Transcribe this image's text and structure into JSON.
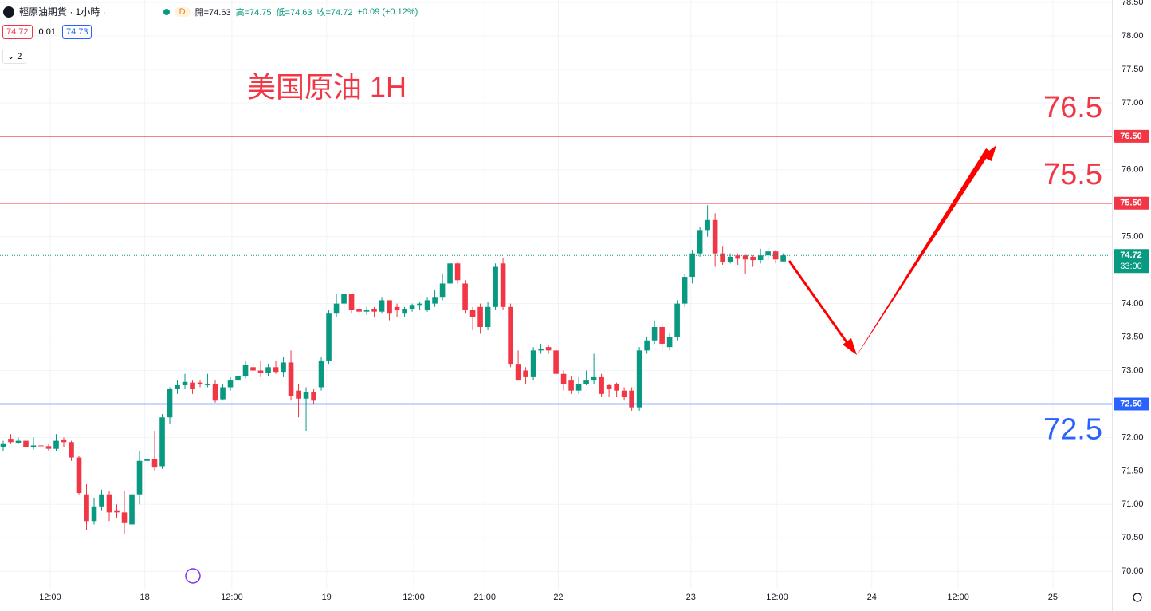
{
  "header": {
    "symbol": "輕原油期貨 · 1小時 ·",
    "badge": "D",
    "ohlc": [
      "開=74.63",
      "高=74.75",
      "低=74.63",
      "收=74.72",
      "+0.09 (+0.12%)"
    ],
    "bid": "74.72",
    "spread": "0.01",
    "ask": "74.73",
    "indicators": "2"
  },
  "chart_data": {
    "type": "candlestick",
    "title": "美国原油 1H",
    "up_color": "#089981",
    "down_color": "#f23645",
    "grid": true,
    "xlim": [
      -0.42,
      146.4
    ],
    "xticks": [
      {
        "value": 6.2,
        "label": "12:00"
      },
      {
        "value": 18.7,
        "label": "18"
      },
      {
        "value": 30.2,
        "label": "12:00"
      },
      {
        "value": 42.7,
        "label": "19"
      },
      {
        "value": 54.2,
        "label": "12:00"
      },
      {
        "value": 63.6,
        "label": "21:00"
      },
      {
        "value": 73.3,
        "label": "22"
      },
      {
        "value": 90.8,
        "label": "23"
      },
      {
        "value": 102.2,
        "label": "12:00"
      },
      {
        "value": 114.7,
        "label": "24"
      },
      {
        "value": 126.1,
        "label": "12:00"
      },
      {
        "value": 138.6,
        "label": "25"
      }
    ],
    "ylim": [
      69.74,
      78.537
    ],
    "yticks": [
      {
        "value": 70,
        "label": "70.00"
      },
      {
        "value": 70.5,
        "label": "70.50"
      },
      {
        "value": 71,
        "label": "71.00"
      },
      {
        "value": 71.5,
        "label": "71.50"
      },
      {
        "value": 72,
        "label": "72.00"
      },
      {
        "value": 72.5,
        "label": "72.50"
      },
      {
        "value": 73,
        "label": "73.00"
      },
      {
        "value": 73.5,
        "label": "73.50"
      },
      {
        "value": 74,
        "label": "74.00"
      },
      {
        "value": 74.5,
        "label": "74.50"
      },
      {
        "value": 75,
        "label": "75.00"
      },
      {
        "value": 75.5,
        "label": "75.50"
      },
      {
        "value": 76,
        "label": "76.00"
      },
      {
        "value": 76.5,
        "label": "76.50"
      },
      {
        "value": 77,
        "label": "77.00"
      },
      {
        "value": 77.5,
        "label": "77.50"
      },
      {
        "value": 78,
        "label": "78.00"
      },
      {
        "value": 78.5,
        "label": "78.50"
      }
    ],
    "open": [
      71.85,
      71.98,
      71.92,
      71.95,
      71.85,
      71.88,
      71.87,
      71.83,
      71.97,
      71.93,
      71.7,
      71.15,
      70.75,
      70.97,
      71.15,
      70.9,
      70.88,
      70.7,
      71.15,
      71.65,
      71.68,
      71.57,
      72.3,
      72.72,
      72.78,
      72.82,
      72.82,
      72.78,
      72.8,
      72.57,
      72.75,
      72.85,
      72.92,
      73.05,
      73,
      72.97,
      73.05,
      72.98,
      73.12,
      72.7,
      72.58,
      72.68,
      72.75,
      73.15,
      73.85,
      74,
      74.15,
      73.92,
      73.88,
      73.92,
      73.88,
      74.05,
      73.95,
      73.85,
      73.92,
      73.98,
      73.9,
      74,
      74.1,
      74.3,
      74.6,
      74.3,
      73.9,
      73.95,
      73.65,
      73.95,
      74.6,
      73.95,
      73.1,
      73,
      72.9,
      73.3,
      73.35,
      73.3,
      72.95,
      72.85,
      72.7,
      72.8,
      72.85,
      72.9,
      72.78,
      72.8,
      72.7,
      72.7,
      72.45,
      73.3,
      73.45,
      73.65,
      73.35,
      73.5,
      74,
      74.4,
      74.75,
      75.1,
      75.25,
      74.75,
      74.62,
      74.72,
      74.72,
      74.7,
      74.65,
      74.72,
      74.78,
      74.63
    ],
    "high": [
      71.95,
      72.05,
      72,
      71.97,
      72,
      71.9,
      71.9,
      72.05,
      72,
      71.95,
      71.72,
      71.3,
      71.1,
      71.22,
      71.2,
      71,
      71.2,
      71.3,
      71.8,
      72.3,
      72.1,
      72.35,
      72.75,
      72.85,
      72.95,
      72.85,
      72.85,
      72.95,
      72.85,
      72.8,
      72.9,
      73,
      73.15,
      73.15,
      73.15,
      73.1,
      73.15,
      73.2,
      73.3,
      72.8,
      72.75,
      72.72,
      73.2,
      73.9,
      74.15,
      74.18,
      74.15,
      73.95,
      73.95,
      73.95,
      74.1,
      74.05,
      74,
      73.95,
      74,
      74.02,
      74.1,
      74.2,
      74.45,
      74.62,
      74.62,
      74.35,
      73.95,
      74,
      74.02,
      74.6,
      74.68,
      74,
      73.3,
      73.05,
      73.35,
      73.4,
      73.38,
      73.35,
      73,
      72.92,
      72.9,
      73,
      73.25,
      72.95,
      72.8,
      72.82,
      72.75,
      72.75,
      73.35,
      73.5,
      73.75,
      73.7,
      73.55,
      74.05,
      74.45,
      74.8,
      75.15,
      75.47,
      75.35,
      74.85,
      74.75,
      74.75,
      74.73,
      74.72,
      74.82,
      74.83,
      74.8,
      74.75
    ],
    "low": [
      71.8,
      71.9,
      71.9,
      71.65,
      71.82,
      71.83,
      71.8,
      71.8,
      71.85,
      71.65,
      71.15,
      70.62,
      70.7,
      70.9,
      70.75,
      70.8,
      70.55,
      70.5,
      71,
      71.6,
      71.5,
      71.53,
      72.2,
      72.65,
      72.72,
      72.65,
      72.75,
      72.75,
      72.52,
      72.55,
      72.7,
      72.78,
      72.88,
      72.95,
      72.9,
      72.92,
      72.95,
      72.9,
      72.55,
      72.3,
      72.1,
      72.5,
      72.7,
      73.1,
      73.8,
      73.85,
      73.85,
      73.82,
      73.83,
      73.8,
      73.85,
      73.75,
      73.8,
      73.8,
      73.88,
      73.9,
      73.88,
      73.95,
      74.05,
      74.25,
      74.3,
      73.85,
      73.6,
      73.55,
      73.6,
      73.9,
      73.9,
      73.05,
      72.85,
      72.8,
      72.85,
      73.25,
      73.25,
      72.9,
      72.7,
      72.65,
      72.65,
      72.78,
      72.8,
      72.6,
      72.6,
      72.6,
      72.55,
      72.4,
      72.4,
      73.25,
      73.4,
      73.3,
      73.3,
      73.45,
      73.95,
      74.3,
      74.7,
      75,
      74.55,
      74.58,
      74.6,
      74.58,
      74.45,
      74.55,
      74.6,
      74.65,
      74.6,
      74.63
    ],
    "close": [
      71.9,
      71.93,
      71.95,
      71.85,
      71.88,
      71.87,
      71.83,
      71.95,
      71.93,
      71.7,
      71.17,
      70.75,
      70.97,
      71.15,
      70.88,
      70.88,
      70.72,
      71.15,
      71.65,
      71.68,
      71.55,
      72.3,
      72.72,
      72.78,
      72.83,
      72.72,
      72.8,
      72.8,
      72.55,
      72.75,
      72.85,
      72.92,
      73.08,
      73,
      72.97,
      73.05,
      72.98,
      73.12,
      72.62,
      72.58,
      72.68,
      72.55,
      73.15,
      73.85,
      74,
      74.15,
      73.9,
      73.88,
      73.9,
      73.88,
      74.05,
      73.85,
      73.9,
      73.92,
      73.98,
      74,
      74.05,
      74.1,
      74.3,
      74.6,
      74.35,
      73.9,
      73.8,
      73.65,
      73.95,
      74.55,
      73.95,
      73.1,
      72.85,
      72.9,
      73.3,
      73.32,
      73.3,
      72.95,
      72.8,
      72.7,
      72.8,
      72.85,
      72.9,
      72.65,
      72.72,
      72.7,
      72.6,
      72.45,
      73.3,
      73.45,
      73.65,
      73.4,
      73.5,
      74,
      74.4,
      74.75,
      75.1,
      75.25,
      74.75,
      74.62,
      74.7,
      74.67,
      74.66,
      74.65,
      74.72,
      74.78,
      74.66,
      74.72
    ],
    "levels": [
      {
        "value": 76.5,
        "label": "76.50",
        "annotation": "76.5",
        "color": "#f23645"
      },
      {
        "value": 75.5,
        "label": "75.50",
        "annotation": "75.5",
        "color": "#f23645"
      },
      {
        "value": 72.5,
        "label": "72.50",
        "annotation": "72.5",
        "color": "#2962ff"
      }
    ],
    "last_price": 74.72,
    "countdown": "33:00"
  }
}
